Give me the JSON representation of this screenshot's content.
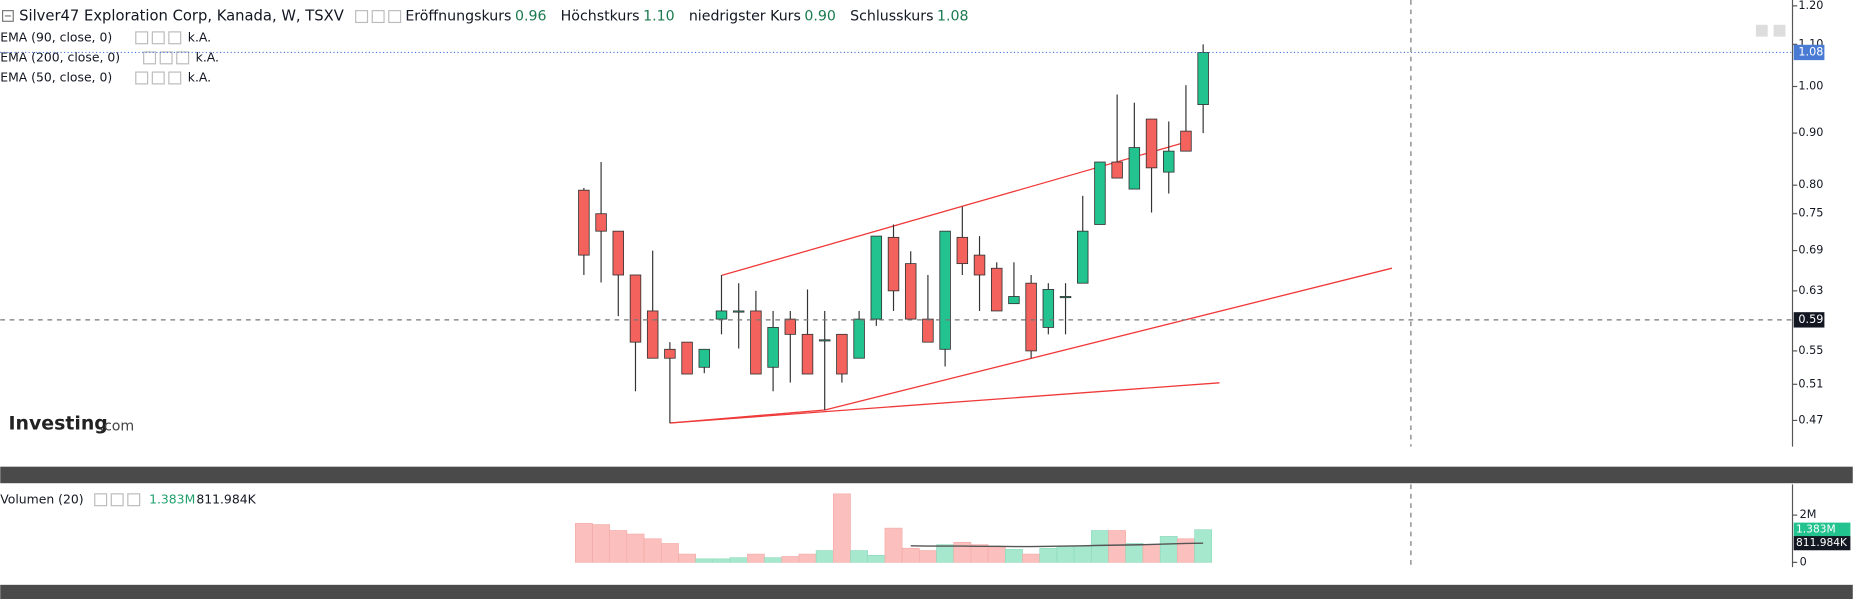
{
  "header": {
    "title": "Silver47 Exploration Corp, Kanada, W, TSXV",
    "ohlc": [
      {
        "label": "Eröffnungskurs",
        "value": "0.96"
      },
      {
        "label": "Höchstkurs",
        "value": "1.10"
      },
      {
        "label": "niedrigster Kurs",
        "value": "0.90"
      },
      {
        "label": "Schlusskurs",
        "value": "1.08"
      }
    ]
  },
  "indicators": [
    {
      "name": "EMA (90, close, 0)",
      "value": "k.A."
    },
    {
      "name": "EMA (200, close, 0)",
      "value": "k.A."
    },
    {
      "name": "EMA (50, close, 0)",
      "value": "k.A."
    }
  ],
  "logo": {
    "brand": "Investing",
    "suffix": ".com"
  },
  "chart_data": [
    {
      "type": "candlestick",
      "log_scale": true,
      "up_color": "#22c38e",
      "down_color": "#f4625d",
      "last_price_color": "#4a7bd4",
      "open": [
        0.791,
        0.75,
        0.721,
        0.653,
        0.602,
        0.552,
        0.561,
        0.53,
        0.591,
        0.602,
        0.602,
        0.53,
        0.591,
        0.571,
        0.564,
        0.571,
        0.541,
        0.591,
        0.711,
        0.67,
        0.591,
        0.552,
        0.711,
        0.683,
        0.663,
        0.612,
        0.641,
        0.58,
        0.622,
        0.641,
        0.732,
        0.843,
        0.793,
        0.929,
        0.824,
        0.904,
        0.96
      ],
      "high": [
        0.795,
        0.843,
        0.721,
        0.653,
        0.69,
        0.561,
        0.561,
        0.552,
        0.653,
        0.641,
        0.63,
        0.602,
        0.602,
        0.632,
        0.602,
        0.571,
        0.602,
        0.713,
        0.732,
        0.689,
        0.653,
        0.721,
        0.762,
        0.713,
        0.672,
        0.672,
        0.653,
        0.641,
        0.641,
        0.781,
        0.843,
        0.982,
        0.964,
        0.929,
        0.924,
        1.003,
        1.1
      ],
      "low": [
        0.653,
        0.642,
        0.595,
        0.502,
        0.541,
        0.467,
        0.522,
        0.523,
        0.571,
        0.553,
        0.522,
        0.502,
        0.512,
        0.522,
        0.481,
        0.512,
        0.541,
        0.582,
        0.602,
        0.591,
        0.561,
        0.531,
        0.653,
        0.602,
        0.602,
        0.612,
        0.541,
        0.571,
        0.571,
        0.641,
        0.732,
        0.813,
        0.793,
        0.752,
        0.785,
        0.864,
        0.9
      ],
      "close": [
        0.683,
        0.721,
        0.653,
        0.561,
        0.541,
        0.541,
        0.522,
        0.552,
        0.602,
        0.602,
        0.522,
        0.58,
        0.571,
        0.522,
        0.564,
        0.522,
        0.591,
        0.713,
        0.63,
        0.591,
        0.561,
        0.721,
        0.67,
        0.653,
        0.602,
        0.622,
        0.55,
        0.632,
        0.622,
        0.721,
        0.843,
        0.813,
        0.871,
        0.832,
        0.864,
        0.864,
        1.08
      ],
      "crosshair": 0.59,
      "ylim": [
        0.443,
        1.216
      ],
      "yticks": [
        {
          "value": 1.2,
          "label": "1.20"
        },
        {
          "value": 1.1,
          "label": "1.10"
        },
        {
          "value": 1.0,
          "label": "1.00"
        },
        {
          "value": 0.9,
          "label": "0.90"
        },
        {
          "value": 0.8,
          "label": "0.80"
        },
        0.75,
        0.69,
        0.63,
        0.55,
        0.51,
        0.47
      ]
    },
    {
      "type": "bar",
      "title": "Volumen (20)",
      "up_color": "#a6e8cd",
      "down_color": "#fbc0bd",
      "series": [
        {
          "name": "Volumen",
          "color": "#22c38e",
          "values": [
            1650000,
            1600000,
            1350000,
            1200000,
            1000000,
            800000,
            350000,
            150000,
            150000,
            200000,
            350000,
            200000,
            250000,
            350000,
            500000,
            2900000,
            500000,
            300000,
            1450000,
            600000,
            500000,
            750000,
            850000,
            750000,
            650000,
            550000,
            350000,
            600000,
            700000,
            700000,
            1350000,
            1350000,
            800000,
            750000,
            1100000,
            1000000,
            1383000
          ],
          "value_labels": [
            null,
            null,
            null,
            null,
            null,
            null,
            null,
            null,
            null,
            null,
            null,
            null,
            null,
            null,
            null,
            null,
            null,
            null,
            null,
            null,
            null,
            null,
            null,
            null,
            null,
            null,
            null,
            null,
            null,
            null,
            null,
            null,
            null,
            null,
            null,
            null,
            "1.383M"
          ]
        },
        {
          "name": "MA",
          "color": "#555555",
          "values": [
            null,
            null,
            null,
            null,
            null,
            null,
            null,
            null,
            null,
            null,
            null,
            null,
            null,
            null,
            null,
            null,
            null,
            null,
            null,
            700000,
            690000,
            690000,
            690000,
            680000,
            680000,
            670000,
            670000,
            680000,
            690000,
            700000,
            720000,
            730000,
            740000,
            760000,
            780000,
            800000,
            811984
          ],
          "value_labels": [
            null,
            null,
            null,
            null,
            null,
            null,
            null,
            null,
            null,
            null,
            null,
            null,
            null,
            null,
            null,
            null,
            null,
            null,
            null,
            null,
            null,
            null,
            null,
            null,
            null,
            null,
            null,
            null,
            null,
            null,
            null,
            null,
            null,
            null,
            null,
            null,
            "811.984K"
          ]
        }
      ],
      "ylim": [
        0,
        3000000
      ],
      "yticks": [
        {
          "value": 2000000,
          "label": "2M"
        },
        0
      ]
    }
  ]
}
